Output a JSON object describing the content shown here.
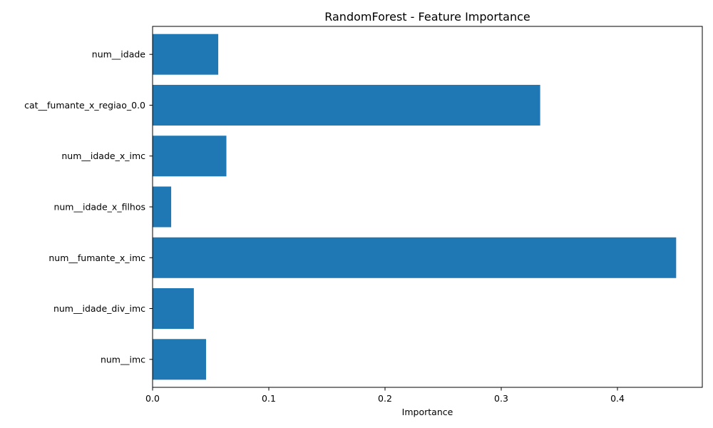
{
  "chart_data": {
    "type": "bar",
    "orientation": "horizontal",
    "title": "RandomForest - Feature Importance",
    "xlabel": "Importance",
    "ylabel": "",
    "categories": [
      "num__idade",
      "cat__fumante_x_regiao_0.0",
      "num__idade_x_imc",
      "num__idade_x_filhos",
      "num__fumante_x_imc",
      "num__idade_div_imc",
      "num__imc"
    ],
    "values": [
      0.0565,
      0.3335,
      0.0635,
      0.016,
      0.4505,
      0.0355,
      0.046
    ],
    "xlim": [
      0,
      0.473
    ],
    "xticks": [
      0.0,
      0.1,
      0.2,
      0.3,
      0.4
    ],
    "xtick_labels": [
      "0.0",
      "0.1",
      "0.2",
      "0.3",
      "0.4"
    ],
    "bar_color": "#1f77b4",
    "grid": false,
    "legend": "none"
  }
}
